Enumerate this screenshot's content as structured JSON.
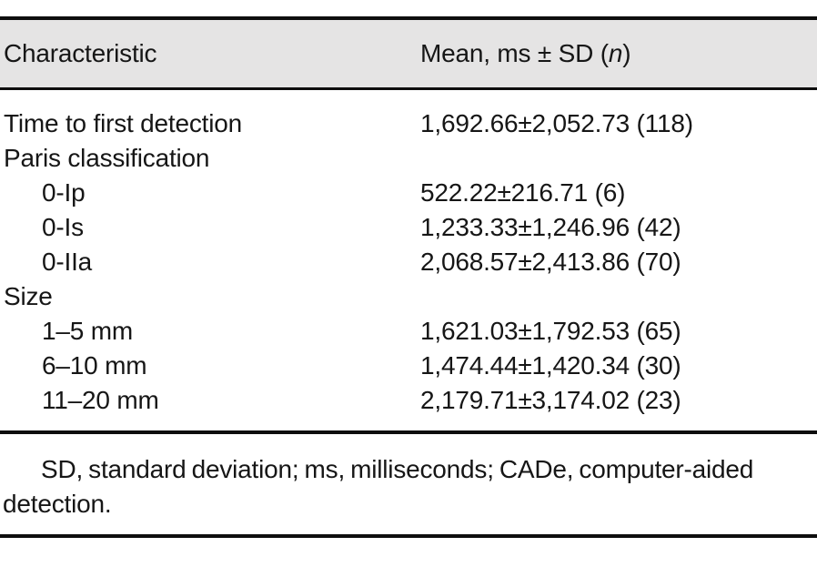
{
  "table": {
    "header": {
      "col1": "Characteristic",
      "col2_prefix": "Mean, ms ± SD (",
      "col2_italic": "n",
      "col2_suffix": ")"
    },
    "rows": [
      {
        "label": "Time to first detection",
        "value": "1,692.66±2,052.73 (118)"
      },
      {
        "label": "Paris classification",
        "value": ""
      },
      {
        "label": "0-Ip",
        "value": "522.22±216.71 (6)"
      },
      {
        "label": "0-Is",
        "value": "1,233.33±1,246.96 (42)"
      },
      {
        "label": "0-IIa",
        "value": "2,068.57±2,413.86 (70)"
      },
      {
        "label": "Size",
        "value": ""
      },
      {
        "label": "1–5 mm",
        "value": "1,621.03±1,792.53 (65)"
      },
      {
        "label": "6–10 mm",
        "value": "1,474.44±1,420.34 (30)"
      },
      {
        "label": "11–20 mm",
        "value": "2,179.71±3,174.02 (23)"
      }
    ],
    "footnote": "SD, standard deviation; ms, milliseconds; CADe, computer-aided detection."
  },
  "colors": {
    "header_bg": "#e5e4e4",
    "text": "#161616",
    "rule": "#0e0e0e"
  }
}
